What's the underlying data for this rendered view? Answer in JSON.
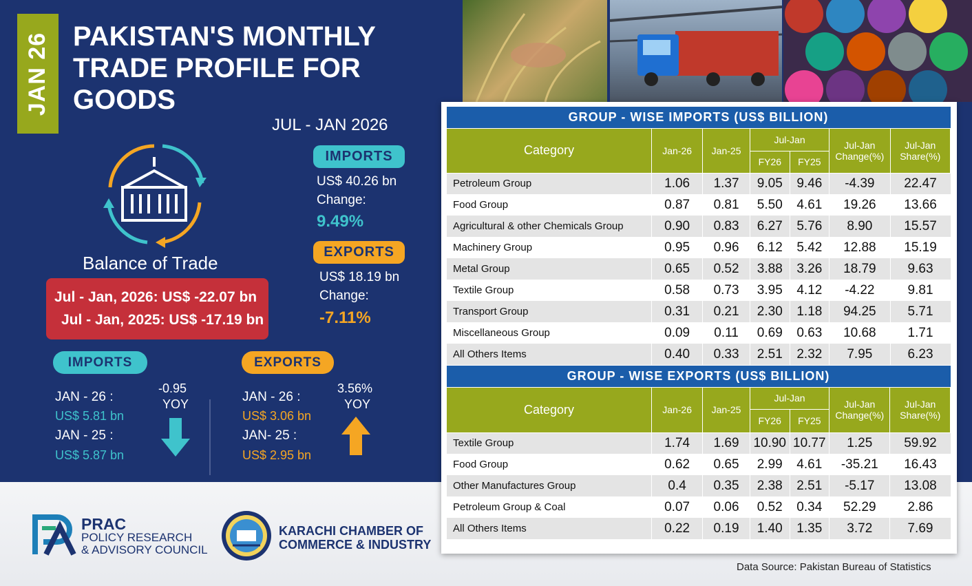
{
  "header": {
    "date_tag": "JAN 26",
    "title_lines": [
      "PAKISTAN'S MONTHLY",
      "TRADE PROFILE FOR",
      "GOODS"
    ],
    "period": "JUL - JAN 2026"
  },
  "summary": {
    "imports_label": "IMPORTS",
    "imports_value": "US$ 40.26 bn",
    "imports_change_label": "Change:",
    "imports_change": "9.49%",
    "exports_label": "EXPORTS",
    "exports_value": "US$  18.19 bn",
    "exports_change_label": "Change:",
    "exports_change": "-7.11%"
  },
  "balance": {
    "label": "Balance of Trade",
    "line1": "Jul  - Jan, 2026: US$ -22.07 bn",
    "line2": "Jul - Jan, 2025: US$ -17.19 bn"
  },
  "monthly": {
    "imports": {
      "label": "IMPORTS",
      "jan26_label": "JAN - 26 :",
      "jan26_value": "US$ 5.81 bn",
      "jan25_label": "JAN - 25 :",
      "jan25_value": "US$  5.87 bn",
      "yoy_value": "-0.95",
      "yoy_label": "YOY"
    },
    "exports": {
      "label": "EXPORTS",
      "jan26_label": "JAN - 26 :",
      "jan26_value": "US$ 3.06 bn",
      "jan25_label": "JAN- 25 :",
      "jan25_value": "US$ 2.95 bn",
      "yoy_value": "3.56%",
      "yoy_label": "YOY"
    }
  },
  "imports_table": {
    "title": "GROUP - WISE IMPORTS (US$ BILLION)",
    "headers": {
      "category": "Category",
      "jan26": "Jan-26",
      "jan25": "Jan-25",
      "juljan": "Jul-Jan",
      "fy26": "FY26",
      "fy25": "FY25",
      "change": "Jul-Jan Change(%)",
      "share": "Jul-Jan Share(%)"
    },
    "rows": [
      [
        "Petroleum Group",
        "1.06",
        "1.37",
        "9.05",
        "9.46",
        "-4.39",
        "22.47"
      ],
      [
        "Food Group",
        "0.87",
        "0.81",
        "5.50",
        "4.61",
        "19.26",
        "13.66"
      ],
      [
        "Agricultural & other Chemicals Group",
        "0.90",
        "0.83",
        "6.27",
        "5.76",
        "8.90",
        "15.57"
      ],
      [
        "Machinery Group",
        "0.95",
        "0.96",
        "6.12",
        "5.42",
        "12.88",
        "15.19"
      ],
      [
        "Metal Group",
        "0.65",
        "0.52",
        "3.88",
        "3.26",
        "18.79",
        "9.63"
      ],
      [
        "Textile Group",
        "0.58",
        "0.73",
        "3.95",
        "4.12",
        "-4.22",
        "9.81"
      ],
      [
        "Transport Group",
        "0.31",
        "0.21",
        "2.30",
        "1.18",
        "94.25",
        "5.71"
      ],
      [
        "Miscellaneous Group",
        "0.09",
        "0.11",
        "0.69",
        "0.63",
        "10.68",
        "1.71"
      ],
      [
        "All Others Items",
        "0.40",
        "0.33",
        "2.51",
        "2.32",
        "7.95",
        "6.23"
      ]
    ]
  },
  "exports_table": {
    "title": "GROUP - WISE EXPORTS (US$ BILLION)",
    "headers": {
      "category": "Category",
      "jan26": "Jan-26",
      "jan25": "Jan-25",
      "juljan": "Jul-Jan",
      "fy26": "FY26",
      "fy25": "FY25",
      "change": "Jul-Jan Change(%)",
      "share": "Jul-Jan Share(%)"
    },
    "rows": [
      [
        "Textile Group",
        "1.74",
        "1.69",
        "10.90",
        "10.77",
        "1.25",
        "59.92"
      ],
      [
        "Food Group",
        "0.62",
        "0.65",
        "2.99",
        "4.61",
        "-35.21",
        "16.43"
      ],
      [
        "Other Manufactures Group",
        "0.4",
        "0.35",
        "2.38",
        "2.51",
        "-5.17",
        "13.08"
      ],
      [
        "Petroleum Group & Coal",
        "0.07",
        "0.06",
        "0.52",
        "0.34",
        "52.29",
        "2.86"
      ],
      [
        "All Others Items",
        "0.22",
        "0.19",
        "1.40",
        "1.35",
        "3.72",
        "7.69"
      ]
    ]
  },
  "footer": {
    "prac_name": "PRAC",
    "prac_line1": "POLICY RESEARCH",
    "prac_line2": "& ADVISORY COUNCIL",
    "kcci_line1": "KARACHI CHAMBER OF",
    "kcci_line2": "COMMERCE & INDUSTRY",
    "source": "Data Source: Pakistan Bureau of Statistics"
  },
  "colors": {
    "navy": "#1c3370",
    "olive": "#97a81d",
    "blue_title": "#1b5daa",
    "teal": "#3fc3cc",
    "orange": "#f5a623",
    "red": "#c5303a"
  }
}
